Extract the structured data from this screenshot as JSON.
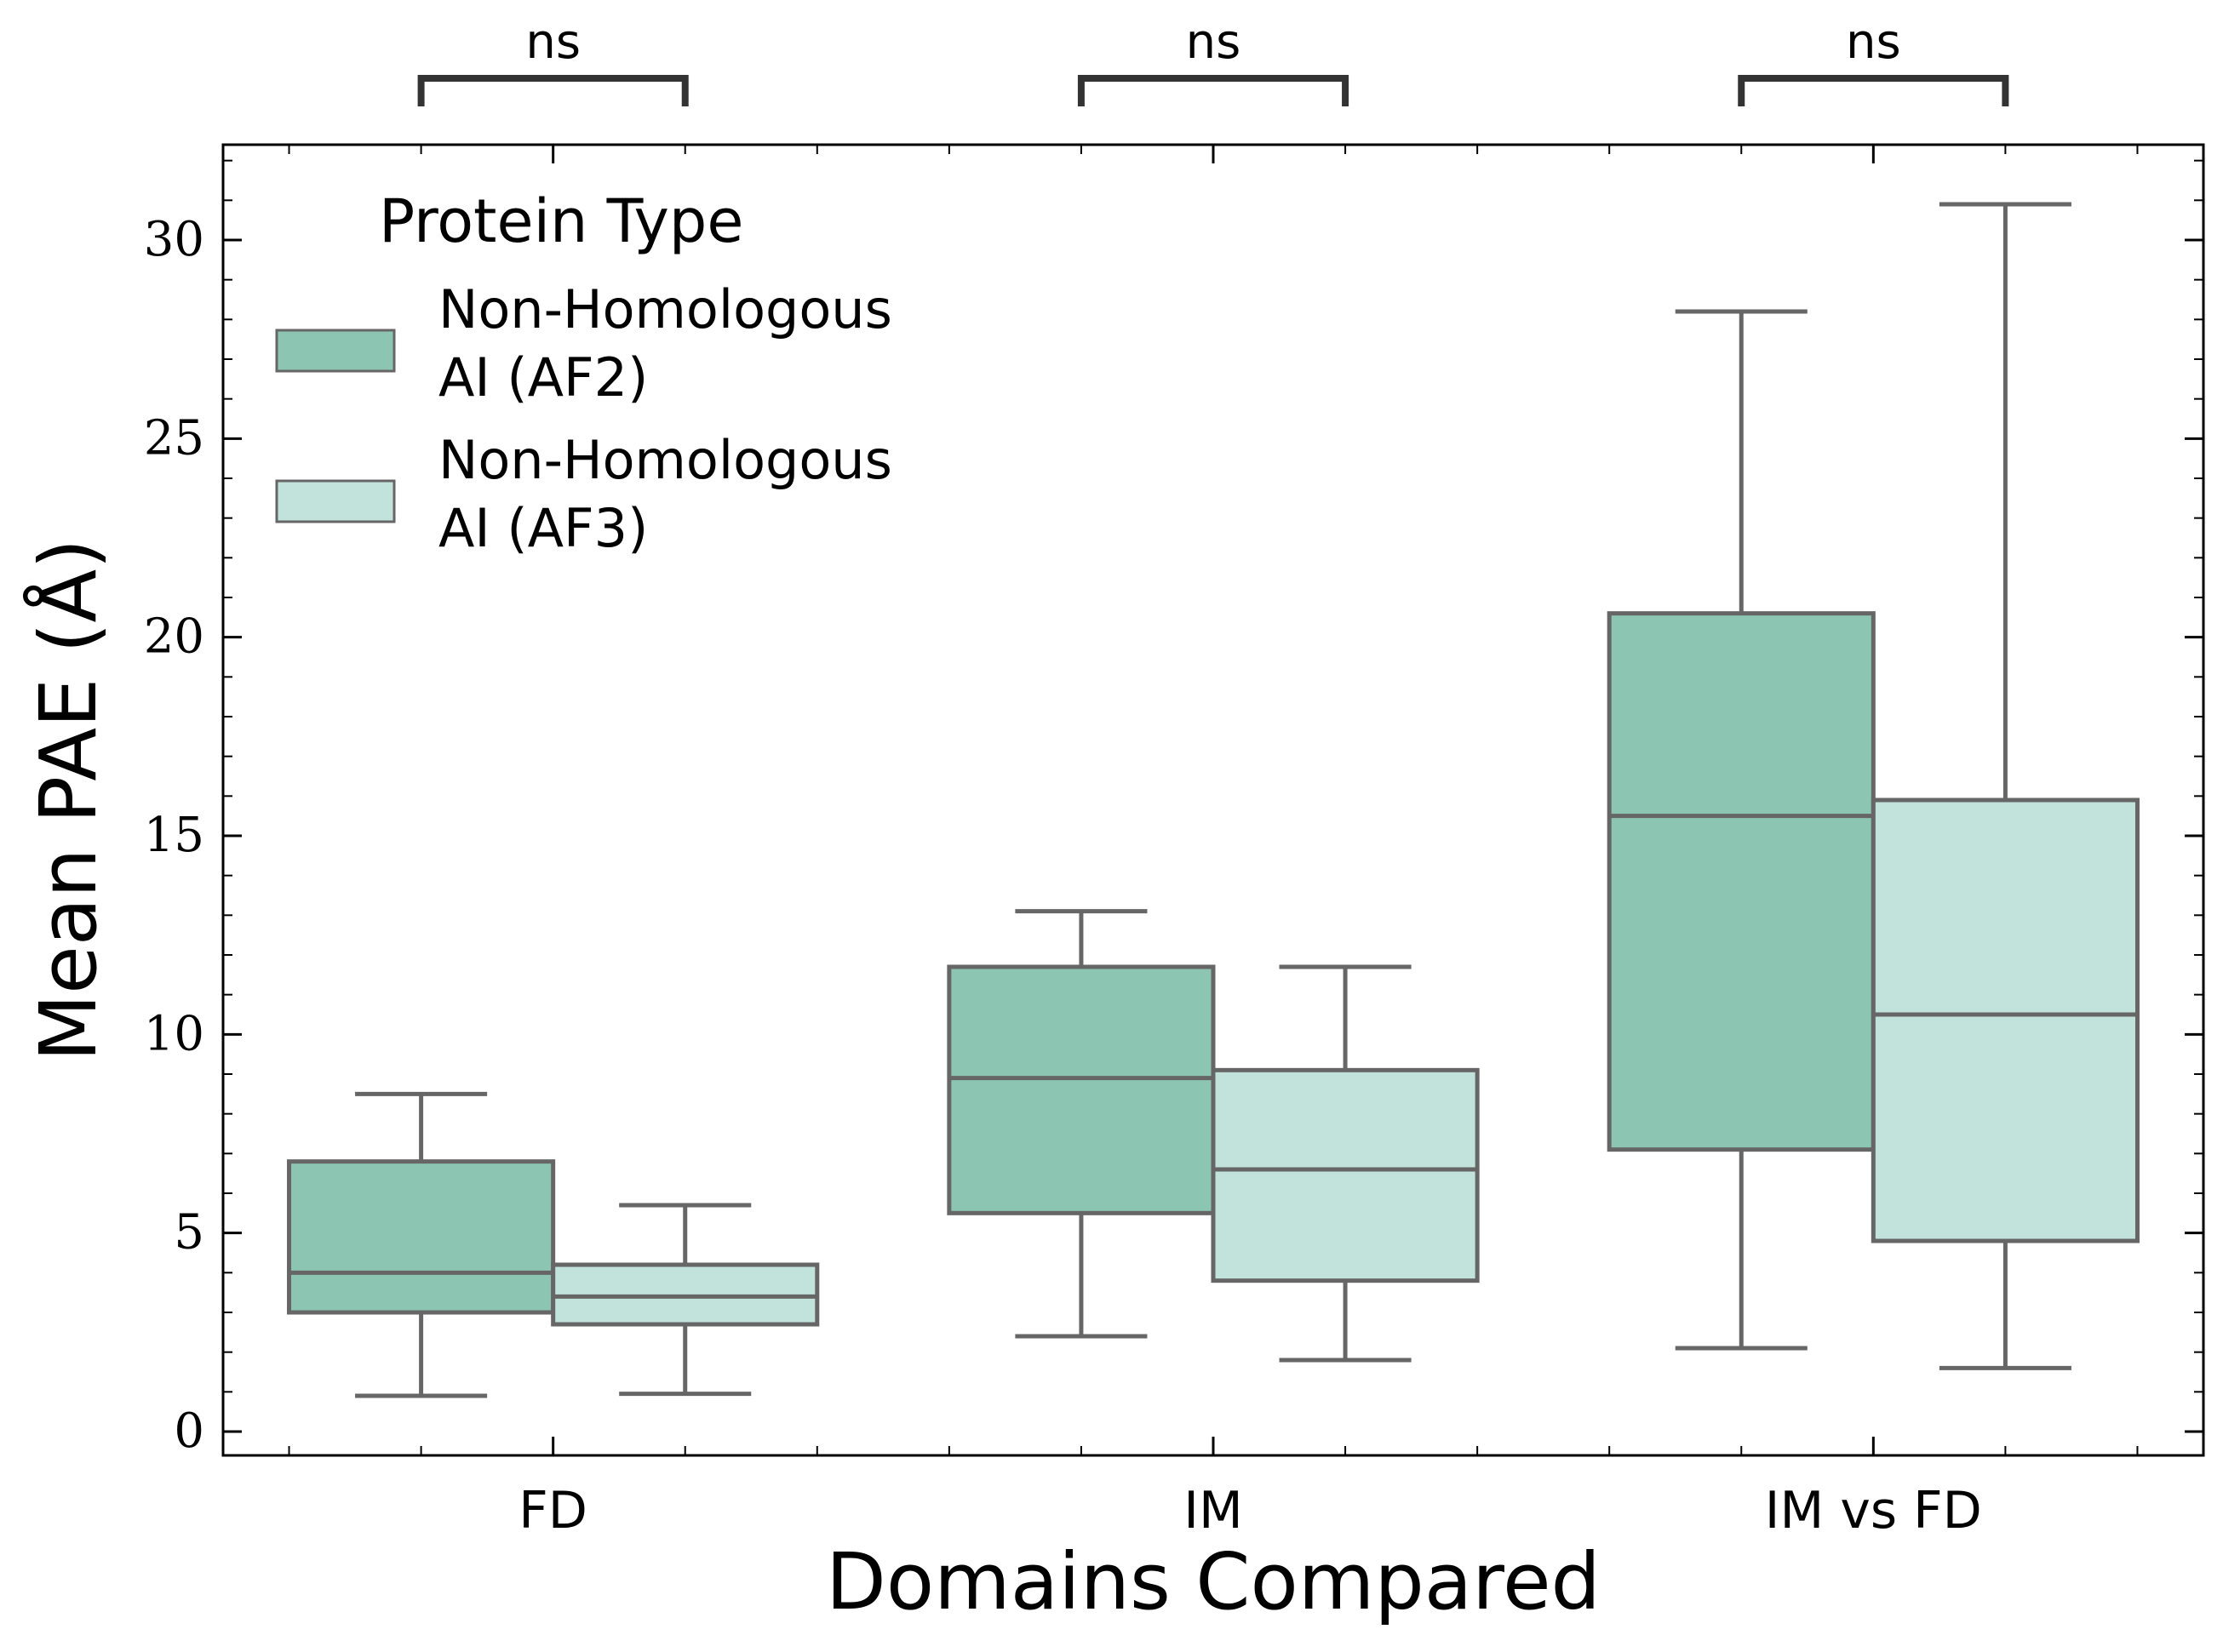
{
  "chart_data": {
    "type": "boxplot",
    "xlabel": "Domains Compared",
    "ylabel": "Mean PAE (Å)",
    "categories": [
      "FD",
      "IM",
      "IM vs FD"
    ],
    "ylim": [
      -0.6,
      32.4
    ],
    "yticks": [
      0,
      5,
      10,
      15,
      20,
      25,
      30
    ],
    "legend": {
      "title": "Protein Type",
      "placement": "top-left"
    },
    "series": [
      {
        "name_line1": "Non-Homologous",
        "name_line2": "AI (AF2)",
        "color": "#8dc5b3",
        "boxes": [
          {
            "whislo": 0.9,
            "q1": 3.0,
            "med": 4.0,
            "q3": 6.8,
            "whishi": 8.5
          },
          {
            "whislo": 2.4,
            "q1": 5.5,
            "med": 8.9,
            "q3": 11.7,
            "whishi": 13.1
          },
          {
            "whislo": 2.1,
            "q1": 7.1,
            "med": 15.5,
            "q3": 20.6,
            "whishi": 28.2
          }
        ]
      },
      {
        "name_line1": "Non-Homologous",
        "name_line2": "AI (AF3)",
        "color": "#c2e2dc",
        "boxes": [
          {
            "whislo": 0.95,
            "q1": 2.7,
            "med": 3.4,
            "q3": 4.2,
            "whishi": 5.7
          },
          {
            "whislo": 1.8,
            "q1": 3.8,
            "med": 6.6,
            "q3": 9.1,
            "whishi": 11.7
          },
          {
            "whislo": 1.6,
            "q1": 4.8,
            "med": 10.5,
            "q3": 15.9,
            "whishi": 30.9
          }
        ]
      }
    ],
    "significance": [
      "ns",
      "ns",
      "ns"
    ],
    "box_edge_color": "#666666",
    "bracket_color": "#333333"
  }
}
